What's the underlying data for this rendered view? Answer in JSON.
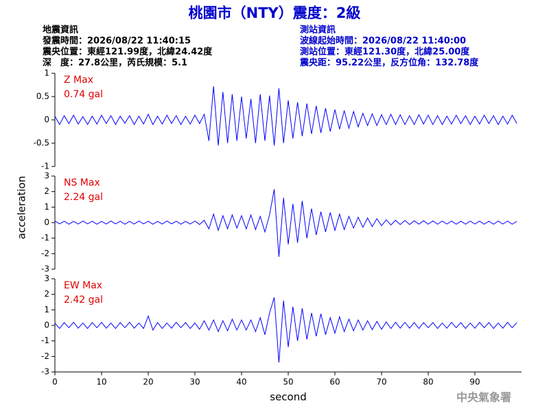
{
  "title": "桃園市（NTY）震度：2級",
  "info_left": [
    "地震資訊",
    "發震時間：2026/08/22 11:40:15",
    "震央位置：東經121.99度，北緯24.42度",
    "深　度：27.8公里，芮氏規模：5.1"
  ],
  "info_right": [
    "測站資訊",
    "波線起始時間：2026/08/22 11:40:00",
    "測站位置：東經121.30度，北緯25.00度",
    "震央距：95.22公里，反方位角：132.78度"
  ],
  "footer": "中央氣象署",
  "chart_data": {
    "type": "line",
    "xlabel": "second",
    "ylabel": "acceleration",
    "color": "#0000ff",
    "xlim": [
      0,
      100
    ],
    "xticks": [
      0,
      10,
      20,
      30,
      40,
      50,
      60,
      70,
      80,
      90
    ],
    "x": [
      0,
      1,
      2,
      3,
      4,
      5,
      6,
      7,
      8,
      9,
      10,
      11,
      12,
      13,
      14,
      15,
      16,
      17,
      18,
      19,
      20,
      21,
      22,
      23,
      24,
      25,
      26,
      27,
      28,
      29,
      30,
      31,
      32,
      33,
      34,
      35,
      36,
      37,
      38,
      39,
      40,
      41,
      42,
      43,
      44,
      45,
      46,
      47,
      48,
      49,
      50,
      51,
      52,
      53,
      54,
      55,
      56,
      57,
      58,
      59,
      60,
      61,
      62,
      63,
      64,
      65,
      66,
      67,
      68,
      69,
      70,
      71,
      72,
      73,
      74,
      75,
      76,
      77,
      78,
      79,
      80,
      81,
      82,
      83,
      84,
      85,
      86,
      87,
      88,
      89,
      90,
      91,
      92,
      93,
      94,
      95,
      96,
      97,
      98,
      99
    ],
    "series": [
      {
        "name": "Z Max",
        "annotation": "0.74 gal",
        "ylim": [
          -1,
          1
        ],
        "yticks": [
          -1,
          -0.5,
          0,
          0.5,
          1
        ],
        "values": [
          0.08,
          -0.1,
          0.09,
          -0.08,
          0.1,
          -0.09,
          0.07,
          -0.1,
          0.08,
          -0.09,
          0.1,
          -0.08,
          0.09,
          -0.1,
          0.08,
          -0.07,
          0.09,
          -0.1,
          0.08,
          -0.09,
          0.12,
          -0.1,
          0.08,
          -0.09,
          0.1,
          -0.08,
          0.09,
          -0.1,
          0.08,
          -0.09,
          0.1,
          -0.08,
          0.12,
          -0.45,
          0.72,
          -0.55,
          0.6,
          -0.5,
          0.55,
          -0.45,
          0.5,
          -0.4,
          0.45,
          -0.5,
          0.55,
          -0.45,
          0.52,
          -0.55,
          0.68,
          -0.5,
          0.42,
          -0.4,
          0.38,
          -0.35,
          0.35,
          -0.3,
          0.3,
          -0.28,
          0.25,
          -0.25,
          0.22,
          -0.2,
          0.2,
          -0.18,
          0.18,
          -0.15,
          0.14,
          -0.12,
          0.13,
          -0.12,
          0.11,
          -0.1,
          0.12,
          -0.1,
          0.11,
          -0.1,
          0.09,
          -0.1,
          0.11,
          -0.09,
          0.1,
          -0.1,
          0.09,
          -0.1,
          0.08,
          -0.09,
          0.1,
          -0.08,
          0.09,
          -0.1,
          0.08,
          -0.09,
          0.1,
          -0.08,
          0.09,
          -0.1,
          0.08,
          -0.09,
          0.1,
          -0.08
        ]
      },
      {
        "name": "NS Max",
        "annotation": "2.24 gal",
        "ylim": [
          -3,
          3
        ],
        "yticks": [
          -3,
          -2,
          -1,
          0,
          1,
          2,
          3
        ],
        "values": [
          0.1,
          -0.08,
          0.09,
          -0.1,
          0.08,
          -0.09,
          0.1,
          -0.08,
          0.09,
          -0.1,
          0.08,
          -0.09,
          0.1,
          -0.08,
          0.09,
          -0.1,
          0.08,
          -0.09,
          0.1,
          -0.08,
          0.09,
          -0.1,
          0.08,
          -0.09,
          0.1,
          -0.08,
          0.09,
          -0.1,
          0.08,
          -0.09,
          0.1,
          -0.12,
          0.15,
          -0.4,
          0.55,
          -0.5,
          0.45,
          -0.4,
          0.5,
          -0.35,
          0.45,
          -0.4,
          0.5,
          -0.45,
          0.4,
          -0.6,
          0.5,
          2.15,
          -2.2,
          1.6,
          -1.4,
          1.2,
          -1.3,
          1.4,
          -1.0,
          0.9,
          -0.8,
          0.7,
          -0.6,
          0.65,
          -0.5,
          0.55,
          -0.45,
          0.4,
          -0.35,
          0.35,
          -0.3,
          0.3,
          -0.25,
          0.25,
          -0.2,
          0.18,
          -0.15,
          0.15,
          -0.12,
          0.14,
          -0.12,
          0.12,
          -0.1,
          0.12,
          -0.1,
          0.11,
          -0.1,
          0.1,
          -0.09,
          0.1,
          -0.1,
          0.09,
          -0.1,
          0.1,
          -0.09,
          0.1,
          -0.1,
          0.09,
          -0.1,
          0.1,
          -0.09,
          0.1,
          -0.1,
          0.09
        ]
      },
      {
        "name": "EW Max",
        "annotation": "2.42 gal",
        "ylim": [
          -3,
          3
        ],
        "yticks": [
          -3,
          -2,
          -1,
          0,
          1,
          2,
          3
        ],
        "values": [
          0.15,
          -0.2,
          0.18,
          -0.15,
          0.2,
          -0.18,
          0.15,
          -0.2,
          0.18,
          -0.15,
          0.2,
          -0.18,
          0.15,
          -0.2,
          0.18,
          -0.15,
          0.2,
          -0.18,
          0.15,
          -0.2,
          0.6,
          -0.3,
          0.18,
          -0.2,
          0.15,
          -0.18,
          0.2,
          -0.15,
          0.18,
          -0.2,
          0.15,
          -0.25,
          0.3,
          -0.3,
          0.35,
          -0.4,
          0.3,
          -0.35,
          0.4,
          -0.3,
          0.35,
          -0.3,
          0.35,
          -0.4,
          0.5,
          -0.6,
          0.8,
          1.8,
          -2.4,
          1.6,
          -1.4,
          1.2,
          -1.0,
          1.1,
          -0.9,
          0.8,
          -0.7,
          0.75,
          -0.6,
          0.5,
          -0.5,
          0.55,
          -0.4,
          0.4,
          -0.35,
          0.35,
          -0.3,
          0.3,
          -0.28,
          0.25,
          -0.25,
          0.22,
          -0.2,
          0.2,
          -0.18,
          0.2,
          -0.18,
          0.18,
          -0.2,
          0.18,
          -0.15,
          0.18,
          -0.2,
          0.15,
          -0.18,
          0.2,
          -0.15,
          0.18,
          -0.2,
          0.15,
          -0.18,
          0.2,
          -0.15,
          0.18,
          -0.2,
          0.15,
          -0.18,
          0.2,
          -0.15,
          0.18
        ]
      }
    ]
  }
}
